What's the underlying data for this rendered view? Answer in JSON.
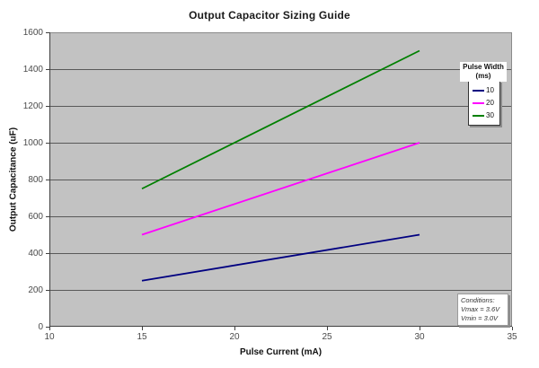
{
  "chart_data": {
    "type": "line",
    "title": "Output Capacitor Sizing Guide",
    "xlabel": "Pulse Current (mA)",
    "ylabel": "Output Capacitance (uF)",
    "xlim": [
      10,
      35
    ],
    "ylim": [
      0,
      1600
    ],
    "xticks": [
      10,
      15,
      20,
      25,
      30,
      35
    ],
    "yticks": [
      0,
      200,
      400,
      600,
      800,
      1000,
      1200,
      1400,
      1600
    ],
    "grid": true,
    "x": [
      15,
      30
    ],
    "series": [
      {
        "name": "10",
        "color": "#000080",
        "values": [
          250,
          500
        ]
      },
      {
        "name": "20",
        "color": "#FF00FF",
        "values": [
          500,
          1000
        ]
      },
      {
        "name": "30",
        "color": "#008000",
        "values": [
          750,
          1500
        ]
      }
    ],
    "legend_position": "inside-top-right",
    "legend_title": "Pulse Width (ms)"
  },
  "legend": {
    "title_line1": "Pulse Width",
    "title_line2": "(ms)",
    "entries": [
      {
        "label": "10",
        "color": "#000080"
      },
      {
        "label": "20",
        "color": "#FF00FF"
      },
      {
        "label": "30",
        "color": "#008000"
      }
    ]
  },
  "annotation": {
    "lines": [
      "Conditions:",
      "Vmax = 3.6V",
      "Vmin = 3.0V"
    ]
  },
  "colors": {
    "plot_bg": "#c2c2c2",
    "gridline": "#595959",
    "axis": "#404040",
    "plot_edge": "#8a8a8a",
    "tick_label": "#4a4a4a"
  }
}
